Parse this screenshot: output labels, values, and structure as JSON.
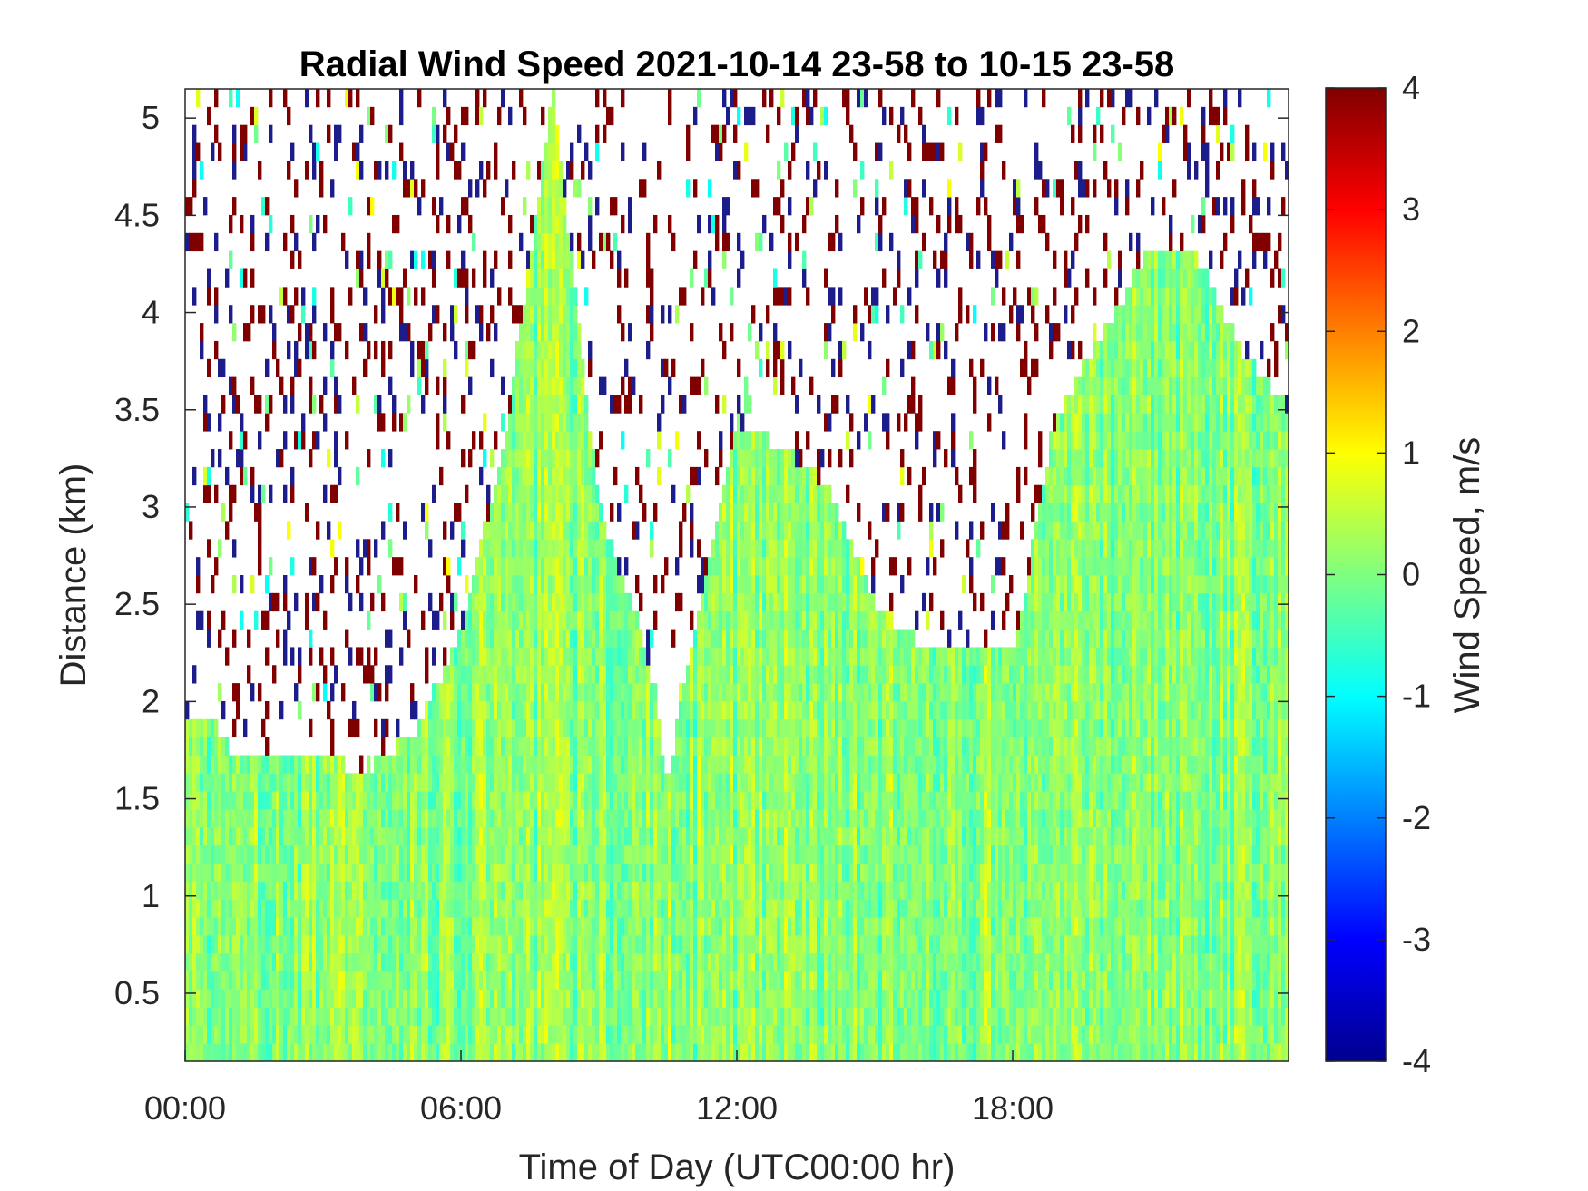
{
  "chart_data": {
    "type": "heatmap",
    "title": "Radial Wind Speed 2021-10-14 23-58 to 10-15 23-58",
    "xlabel": "Time of Day (UTC00:00 hr)",
    "ylabel": "Distance (km)",
    "colorbar_label": "Wind Speed, m/s",
    "colormap": "jet",
    "x_ticks": [
      {
        "label": "00:00",
        "value": 0
      },
      {
        "label": "06:00",
        "value": 6
      },
      {
        "label": "12:00",
        "value": 12
      },
      {
        "label": "18:00",
        "value": 18
      }
    ],
    "x_range_hours": [
      0,
      24
    ],
    "y_ticks": [
      {
        "label": "0.5",
        "value": 0.5
      },
      {
        "label": "1",
        "value": 1
      },
      {
        "label": "1.5",
        "value": 1.5
      },
      {
        "label": "2",
        "value": 2
      },
      {
        "label": "2.5",
        "value": 2.5
      },
      {
        "label": "3",
        "value": 3
      },
      {
        "label": "3.5",
        "value": 3.5
      },
      {
        "label": "4",
        "value": 4
      },
      {
        "label": "4.5",
        "value": 4.5
      },
      {
        "label": "5",
        "value": 5
      }
    ],
    "ylim": [
      0.15,
      5.15
    ],
    "colorbar_ticks": [
      {
        "label": "4",
        "value": 4
      },
      {
        "label": "3",
        "value": 3
      },
      {
        "label": "2",
        "value": 2
      },
      {
        "label": "1",
        "value": 1
      },
      {
        "label": "0",
        "value": 0
      },
      {
        "label": "-1",
        "value": -1
      },
      {
        "label": "-2",
        "value": -2
      },
      {
        "label": "-3",
        "value": -3
      },
      {
        "label": "-4",
        "value": -4
      }
    ],
    "clim": [
      -4,
      4
    ],
    "typical_value_in_valid_region": 0,
    "valid_data_top_km": [
      [
        0,
        1.95
      ],
      [
        0.5,
        1.95
      ],
      [
        1,
        1.75
      ],
      [
        2,
        1.75
      ],
      [
        3,
        1.7
      ],
      [
        4,
        1.65
      ],
      [
        5,
        1.85
      ],
      [
        6,
        2.35
      ],
      [
        7,
        3.4
      ],
      [
        8,
        5.15
      ],
      [
        9,
        3.0
      ],
      [
        10,
        2.3
      ],
      [
        10.5,
        1.6
      ],
      [
        11,
        2.3
      ],
      [
        12,
        3.45
      ],
      [
        13,
        3.3
      ],
      [
        14,
        3.1
      ],
      [
        15,
        2.5
      ],
      [
        16,
        2.3
      ],
      [
        17,
        2.25
      ],
      [
        18,
        2.25
      ],
      [
        19,
        3.5
      ],
      [
        20,
        3.9
      ],
      [
        21,
        4.35
      ],
      [
        22,
        4.3
      ],
      [
        23,
        3.8
      ],
      [
        24,
        3.5
      ]
    ]
  }
}
